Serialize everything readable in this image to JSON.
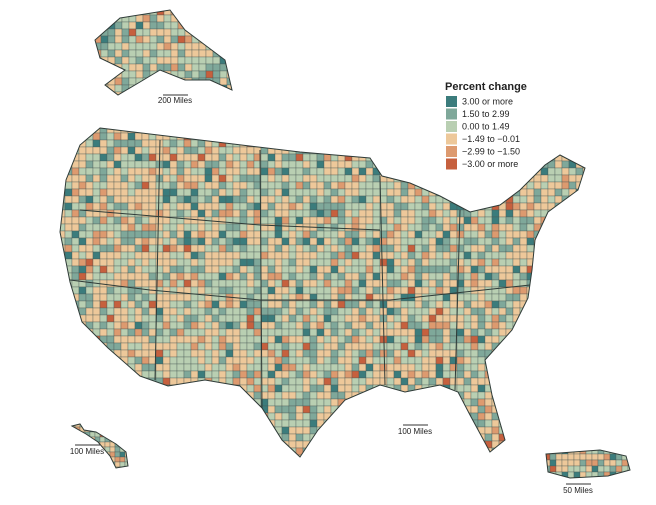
{
  "legend": {
    "title": "Percent change",
    "items": [
      {
        "label": "3.00 or more",
        "color": "#3b7c7c"
      },
      {
        "label": "1.50 to 2.99",
        "color": "#7fa89a"
      },
      {
        "label": "0.00 to 1.49",
        "color": "#b9cfb2"
      },
      {
        "label": "−1.49 to −0.01",
        "color": "#edc89a"
      },
      {
        "label": "−2.99 to −1.50",
        "color": "#dd9a6f"
      },
      {
        "label": "−3.00 or more",
        "color": "#c6603e"
      }
    ]
  },
  "scale_bars": {
    "alaska": "200 Miles",
    "contiguous": "100 Miles",
    "hawaii": "100 Miles",
    "puerto_rico": "50 Miles"
  }
}
